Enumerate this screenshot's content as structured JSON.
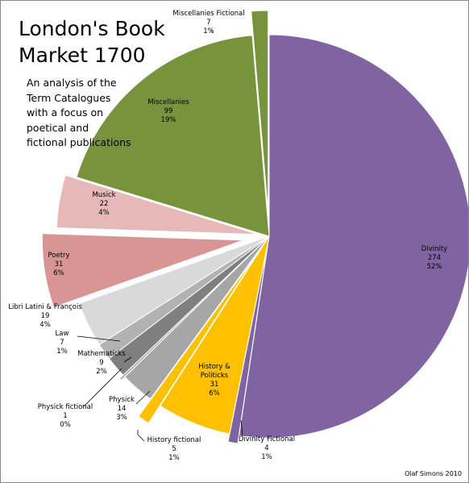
{
  "title": "London's Book Market 1700",
  "subtitle": "An analysis of the Term Catalogues with a focus on poetical and fictional publications",
  "credit": "Olaf Simons 2010",
  "chart_data": {
    "type": "pie",
    "title": "London's Book Market 1700",
    "subtitle": "An analysis of the Term Catalogues with a focus on poetical and fictional publications",
    "slices": [
      {
        "label": "Divinity",
        "value": 274,
        "percent": "52%",
        "color": "#8064a2"
      },
      {
        "label": "Divinity Fictional",
        "value": 4,
        "percent": "1%",
        "color": "#8064a2"
      },
      {
        "label": "History & Politicks",
        "value": 31,
        "percent": "6%",
        "color": "#ffc000"
      },
      {
        "label": "History fictional",
        "value": 5,
        "percent": "1%",
        "color": "#ffc000"
      },
      {
        "label": "Physick",
        "value": 14,
        "percent": "3%",
        "color": "#a6a6a6"
      },
      {
        "label": "Physick fictional",
        "value": 1,
        "percent": "0%",
        "color": "#a6a6a6"
      },
      {
        "label": "Mathematicks",
        "value": 9,
        "percent": "2%",
        "color": "#7f7f7f"
      },
      {
        "label": "Law",
        "value": 7,
        "percent": "1%",
        "color": "#b2b2b2"
      },
      {
        "label": "Libri Latini & François",
        "value": 19,
        "percent": "4%",
        "color": "#d9d9d9"
      },
      {
        "label": "Poetry",
        "value": 31,
        "percent": "6%",
        "color": "#d99594"
      },
      {
        "label": "Musick",
        "value": 22,
        "percent": "4%",
        "color": "#e6b9b8"
      },
      {
        "label": "Miscellanies",
        "value": 99,
        "percent": "19%",
        "color": "#77933c"
      },
      {
        "label": "Miscellanies Fictional",
        "value": 7,
        "percent": "1%",
        "color": "#77933c"
      }
    ],
    "legend": "none"
  }
}
